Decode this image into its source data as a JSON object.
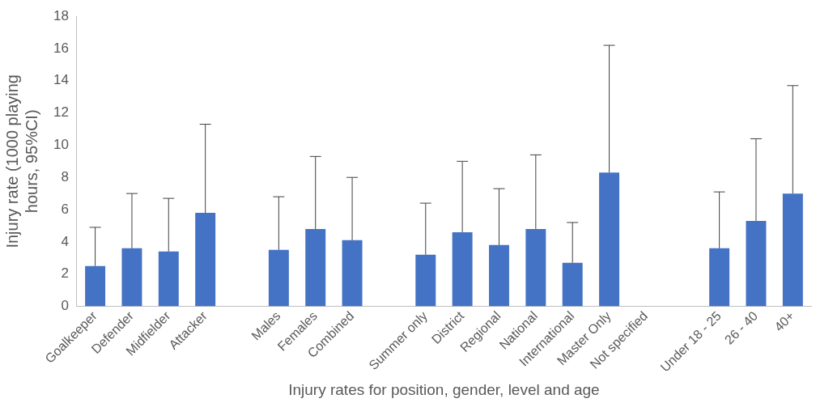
{
  "chart_data": {
    "type": "bar",
    "xlabel": "Injury rates for position, gender, level and age",
    "ylabel": "Injury rate (1000 playing hours, 95%CI)",
    "categories": [
      "Goalkeeper",
      "Defender",
      "Midfielder",
      "Attacker",
      null,
      "Males",
      "Females",
      "Combined",
      null,
      "Summer only",
      "District",
      "Regional",
      "National",
      "International",
      "Master Only",
      "Not specified",
      null,
      "Under 18 - 25",
      "26 - 40",
      "40+"
    ],
    "values": [
      2.5,
      3.6,
      3.4,
      5.8,
      null,
      3.5,
      4.8,
      4.1,
      null,
      3.2,
      4.6,
      3.8,
      4.8,
      2.7,
      8.3,
      null,
      null,
      3.6,
      5.3,
      7.0
    ],
    "errors": [
      [
        2.5,
        4.9
      ],
      [
        3.6,
        7.0
      ],
      [
        3.4,
        6.7
      ],
      [
        5.8,
        11.3
      ],
      null,
      [
        3.5,
        6.8
      ],
      [
        4.8,
        9.3
      ],
      [
        4.1,
        8.0
      ],
      null,
      [
        3.2,
        6.4
      ],
      [
        4.6,
        9.0
      ],
      [
        3.8,
        7.3
      ],
      [
        4.8,
        9.4
      ],
      [
        2.7,
        5.2
      ],
      [
        8.3,
        16.2
      ],
      null,
      null,
      [
        3.6,
        7.1
      ],
      [
        5.3,
        10.4
      ],
      [
        7.0,
        13.7
      ]
    ],
    "color": "#4472c4",
    "ylim": [
      0,
      18
    ],
    "yticks": [
      0,
      2,
      4,
      6,
      8,
      10,
      12,
      14,
      16,
      18
    ],
    "grid": false,
    "legend": false
  }
}
